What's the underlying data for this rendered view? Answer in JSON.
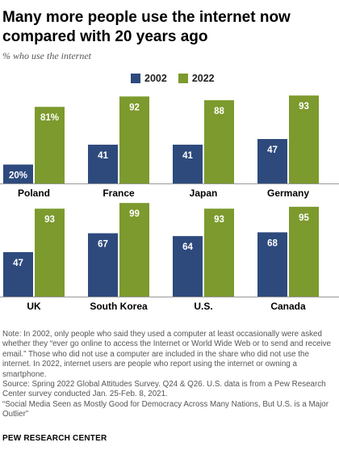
{
  "title": "Many more people use the internet now compared with 20 years ago",
  "subtitle": "% who use the internet",
  "legend": [
    {
      "label": "2002",
      "color": "#2e4a7d"
    },
    {
      "label": "2022",
      "color": "#7c9a2d"
    }
  ],
  "notes": {
    "note": "Note: In 2002, only people who said they used a computer at least occasionally were asked whether they “ever go online to access the Internet or World Wide Web or to send and receive email.” Those who did not use a computer are included in the share who did not use the internet. In 2022, internet users are people who report using the internet or owning a smartphone.",
    "source": "Source: Spring 2022 Global Attitudes Survey. Q24 & Q26. U.S. data is from a Pew Research Center survey conducted Jan. 25-Feb. 8, 2021.",
    "report": "“Social Media Seen as Mostly Good for Democracy Across Many Nations, But U.S. is a Major Outlier”"
  },
  "brand": "PEW RESEARCH CENTER",
  "chart_data": {
    "type": "bar",
    "categories": [
      "Poland",
      "France",
      "Japan",
      "Germany",
      "UK",
      "South Korea",
      "U.S.",
      "Canada"
    ],
    "series": [
      {
        "name": "2002",
        "values": [
          20,
          41,
          41,
          47,
          47,
          67,
          64,
          68
        ],
        "labels": [
          "20%",
          "41",
          "41",
          "47",
          "47",
          "67",
          "64",
          "68"
        ],
        "color": "#2e4a7d"
      },
      {
        "name": "2022",
        "values": [
          81,
          92,
          88,
          93,
          93,
          99,
          93,
          95
        ],
        "labels": [
          "81%",
          "92",
          "88",
          "93",
          "93",
          "99",
          "93",
          "95"
        ],
        "color": "#7c9a2d"
      }
    ],
    "ylim": [
      0,
      100
    ],
    "grid": false,
    "legend_position": "top-center"
  }
}
